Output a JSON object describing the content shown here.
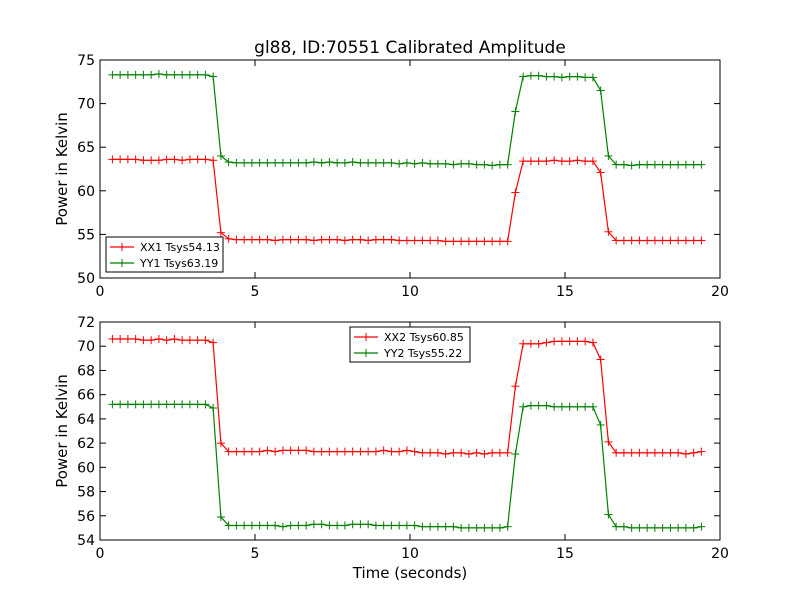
{
  "title": "gl88, ID:70551 Calibrated Amplitude",
  "colors": {
    "series1": "#ff0000",
    "series2": "#008000",
    "axes": "#000000"
  },
  "chart_data": [
    {
      "type": "line",
      "title": "gl88, ID:70551 Calibrated Amplitude",
      "xlabel": "",
      "ylabel": "Power in Kelvin",
      "xlim": [
        0,
        20
      ],
      "ylim": [
        50,
        75
      ],
      "xticks": [
        "0",
        "5",
        "10",
        "15",
        "20"
      ],
      "yticks": [
        "50",
        "55",
        "60",
        "65",
        "70",
        "75"
      ],
      "legend_position": "lower-left",
      "grid": false,
      "x": [
        0.4,
        0.65,
        0.9,
        1.15,
        1.4,
        1.65,
        1.9,
        2.15,
        2.4,
        2.65,
        2.9,
        3.15,
        3.4,
        3.65,
        3.9,
        4.15,
        4.4,
        4.65,
        4.9,
        5.15,
        5.4,
        5.65,
        5.9,
        6.15,
        6.4,
        6.65,
        6.9,
        7.15,
        7.4,
        7.65,
        7.9,
        8.15,
        8.4,
        8.65,
        8.9,
        9.15,
        9.4,
        9.65,
        9.9,
        10.15,
        10.4,
        10.65,
        10.9,
        11.15,
        11.4,
        11.65,
        11.9,
        12.15,
        12.4,
        12.65,
        12.9,
        13.15,
        13.4,
        13.65,
        13.9,
        14.15,
        14.4,
        14.65,
        14.9,
        15.15,
        15.4,
        15.65,
        15.9,
        16.15,
        16.4,
        16.65,
        16.9,
        17.15,
        17.4,
        17.65,
        17.9,
        18.15,
        18.4,
        18.65,
        18.9,
        19.15,
        19.4
      ],
      "series": [
        {
          "name": "XX1 Tsys54.13",
          "color": "#ff0000",
          "values": [
            63.6,
            63.6,
            63.6,
            63.6,
            63.5,
            63.5,
            63.5,
            63.6,
            63.6,
            63.5,
            63.6,
            63.6,
            63.6,
            63.5,
            55.2,
            54.5,
            54.4,
            54.4,
            54.4,
            54.4,
            54.4,
            54.3,
            54.4,
            54.4,
            54.4,
            54.4,
            54.3,
            54.4,
            54.4,
            54.4,
            54.3,
            54.4,
            54.4,
            54.3,
            54.4,
            54.4,
            54.4,
            54.3,
            54.3,
            54.3,
            54.3,
            54.3,
            54.3,
            54.2,
            54.2,
            54.2,
            54.2,
            54.2,
            54.2,
            54.2,
            54.2,
            54.2,
            59.8,
            63.4,
            63.4,
            63.4,
            63.4,
            63.5,
            63.4,
            63.4,
            63.5,
            63.4,
            63.4,
            62.1,
            55.3,
            54.3,
            54.3,
            54.3,
            54.3,
            54.3,
            54.3,
            54.3,
            54.3,
            54.3,
            54.3,
            54.3,
            54.3
          ]
        },
        {
          "name": "YY1 Tsys63.19",
          "color": "#008000",
          "values": [
            73.3,
            73.3,
            73.3,
            73.3,
            73.3,
            73.3,
            73.4,
            73.3,
            73.3,
            73.3,
            73.3,
            73.3,
            73.3,
            73.1,
            64.0,
            63.3,
            63.2,
            63.2,
            63.2,
            63.2,
            63.2,
            63.2,
            63.2,
            63.2,
            63.2,
            63.2,
            63.3,
            63.2,
            63.3,
            63.2,
            63.2,
            63.3,
            63.2,
            63.2,
            63.2,
            63.2,
            63.2,
            63.1,
            63.2,
            63.1,
            63.2,
            63.1,
            63.1,
            63.1,
            63.0,
            63.1,
            63.1,
            63.0,
            63.0,
            62.9,
            63.0,
            63.0,
            69.1,
            73.1,
            73.2,
            73.2,
            73.1,
            73.1,
            73.0,
            73.1,
            73.1,
            73.0,
            73.0,
            71.5,
            64.0,
            63.0,
            63.0,
            62.9,
            63.0,
            63.0,
            63.0,
            63.0,
            63.0,
            63.0,
            63.0,
            63.0,
            63.0
          ]
        }
      ]
    },
    {
      "type": "line",
      "title": "",
      "xlabel": "Time (seconds)",
      "ylabel": "Power in Kelvin",
      "xlim": [
        0,
        20
      ],
      "ylim": [
        54,
        72
      ],
      "xticks": [
        "0",
        "5",
        "10",
        "15",
        "20"
      ],
      "yticks": [
        "54",
        "56",
        "58",
        "60",
        "62",
        "64",
        "66",
        "68",
        "70",
        "72"
      ],
      "legend_position": "upper-center",
      "grid": false,
      "x": [
        0.4,
        0.65,
        0.9,
        1.15,
        1.4,
        1.65,
        1.9,
        2.15,
        2.4,
        2.65,
        2.9,
        3.15,
        3.4,
        3.65,
        3.9,
        4.15,
        4.4,
        4.65,
        4.9,
        5.15,
        5.4,
        5.65,
        5.9,
        6.15,
        6.4,
        6.65,
        6.9,
        7.15,
        7.4,
        7.65,
        7.9,
        8.15,
        8.4,
        8.65,
        8.9,
        9.15,
        9.4,
        9.65,
        9.9,
        10.15,
        10.4,
        10.65,
        10.9,
        11.15,
        11.4,
        11.65,
        11.9,
        12.15,
        12.4,
        12.65,
        12.9,
        13.15,
        13.4,
        13.65,
        13.9,
        14.15,
        14.4,
        14.65,
        14.9,
        15.15,
        15.4,
        15.65,
        15.9,
        16.15,
        16.4,
        16.65,
        16.9,
        17.15,
        17.4,
        17.65,
        17.9,
        18.15,
        18.4,
        18.65,
        18.9,
        19.15,
        19.4
      ],
      "series": [
        {
          "name": "XX2 Tsys60.85",
          "color": "#ff0000",
          "values": [
            70.6,
            70.6,
            70.6,
            70.6,
            70.5,
            70.5,
            70.6,
            70.5,
            70.6,
            70.5,
            70.5,
            70.5,
            70.5,
            70.3,
            62.0,
            61.3,
            61.3,
            61.3,
            61.3,
            61.3,
            61.4,
            61.3,
            61.4,
            61.4,
            61.4,
            61.4,
            61.3,
            61.3,
            61.3,
            61.3,
            61.3,
            61.3,
            61.3,
            61.3,
            61.3,
            61.4,
            61.3,
            61.3,
            61.4,
            61.3,
            61.2,
            61.2,
            61.2,
            61.1,
            61.2,
            61.2,
            61.1,
            61.2,
            61.1,
            61.2,
            61.2,
            61.2,
            66.7,
            70.2,
            70.2,
            70.2,
            70.3,
            70.4,
            70.4,
            70.4,
            70.4,
            70.4,
            70.3,
            68.9,
            62.1,
            61.2,
            61.2,
            61.2,
            61.2,
            61.2,
            61.2,
            61.2,
            61.2,
            61.2,
            61.1,
            61.2,
            61.3
          ]
        },
        {
          "name": "YY2 Tsys55.22",
          "color": "#008000",
          "values": [
            65.2,
            65.2,
            65.2,
            65.2,
            65.2,
            65.2,
            65.2,
            65.2,
            65.2,
            65.2,
            65.2,
            65.2,
            65.2,
            64.9,
            55.9,
            55.2,
            55.2,
            55.2,
            55.2,
            55.2,
            55.2,
            55.2,
            55.1,
            55.2,
            55.2,
            55.2,
            55.3,
            55.3,
            55.2,
            55.2,
            55.2,
            55.3,
            55.3,
            55.3,
            55.2,
            55.2,
            55.2,
            55.2,
            55.2,
            55.2,
            55.1,
            55.1,
            55.1,
            55.1,
            55.1,
            55.0,
            55.0,
            55.0,
            55.0,
            55.0,
            55.0,
            55.1,
            61.1,
            65.0,
            65.1,
            65.1,
            65.1,
            65.0,
            65.0,
            65.0,
            65.0,
            65.0,
            65.0,
            63.5,
            56.1,
            55.1,
            55.1,
            55.0,
            55.0,
            55.0,
            55.0,
            55.0,
            55.0,
            55.0,
            55.0,
            55.0,
            55.1
          ]
        }
      ]
    }
  ]
}
